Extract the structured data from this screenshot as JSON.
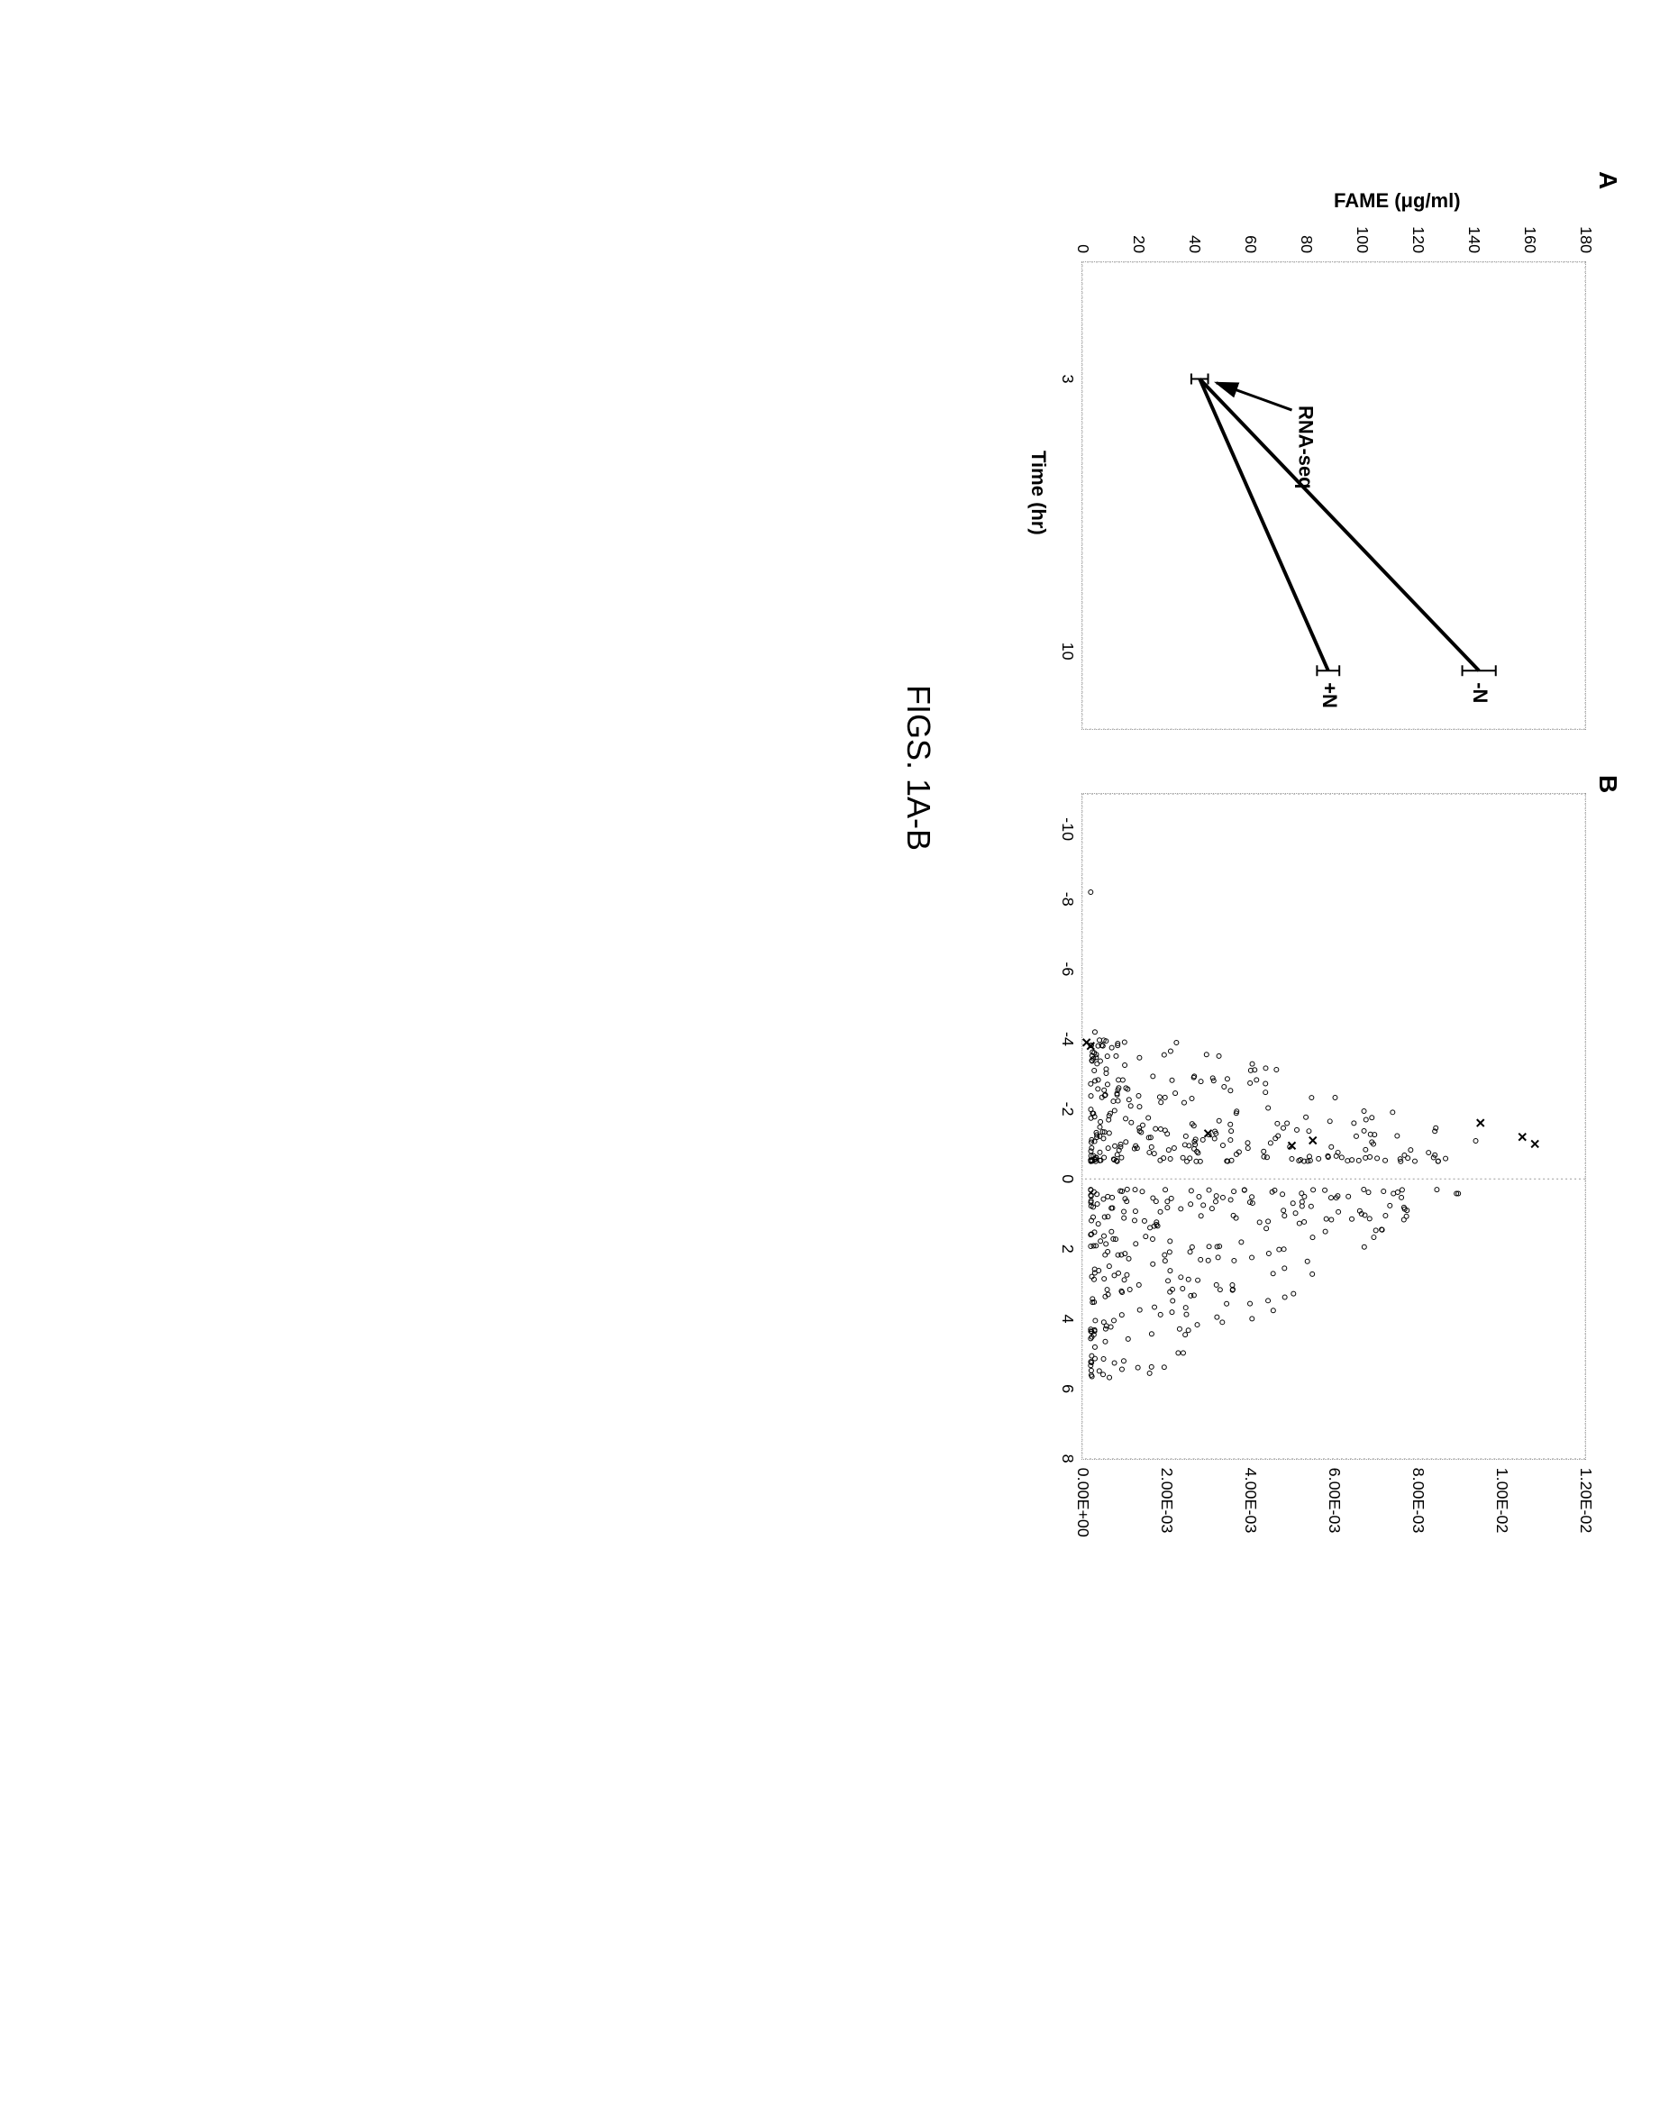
{
  "figure_caption": "FIGS. 1A-B",
  "panel_a": {
    "label": "A",
    "type": "line",
    "x_axis_label": "Time (hr)",
    "y_axis_label": "FAME (μg/ml)",
    "x_ticks": [
      3,
      10
    ],
    "y_ticks": [
      0,
      20,
      40,
      60,
      80,
      100,
      120,
      140,
      160,
      180
    ],
    "xlim": [
      0,
      12
    ],
    "ylim": [
      0,
      180
    ],
    "series": [
      {
        "name": "-N",
        "x": [
          3,
          10.5
        ],
        "y": [
          42,
          142
        ],
        "label": "-N",
        "label_x": 10.8,
        "label_y": 142,
        "error_bars": [
          {
            "x": 3,
            "y": 42,
            "err": 3
          },
          {
            "x": 10.5,
            "y": 142,
            "err": 6
          }
        ]
      },
      {
        "name": "+N",
        "x": [
          3,
          10.5
        ],
        "y": [
          42,
          88
        ],
        "label": "+N",
        "label_x": 10.8,
        "label_y": 88,
        "error_bars": [
          {
            "x": 3,
            "y": 42,
            "err": 3
          },
          {
            "x": 10.5,
            "y": 88,
            "err": 4
          }
        ]
      }
    ],
    "annotation": {
      "text": "RNA-seq",
      "arrow_from": [
        3.8,
        75
      ],
      "arrow_to": [
        3.1,
        48
      ]
    },
    "line_color": "#000000",
    "line_width": 4,
    "marker_size": 6,
    "grid_color": "#cccccc",
    "background_color": "#ffffff",
    "font_size_axis": 22,
    "font_size_tick": 18
  },
  "panel_b": {
    "label": "B",
    "type": "scatter",
    "x_ticks": [
      -10,
      -8,
      -6,
      -4,
      -2,
      0,
      2,
      4,
      6,
      8
    ],
    "y_ticks": [
      "0.00E+00",
      "2.00E-03",
      "4.00E-03",
      "6.00E-03",
      "8.00E-03",
      "1.00E-02",
      "1.20E-02"
    ],
    "y_tick_values": [
      0,
      0.002,
      0.004,
      0.006,
      0.008,
      0.01,
      0.012
    ],
    "xlim": [
      -11,
      8
    ],
    "ylim": [
      0,
      0.012
    ],
    "vertical_line_x": 0,
    "circle_marker": {
      "shape": "circle",
      "size": 5,
      "fill": "none",
      "stroke": "#000000"
    },
    "x_marker": {
      "shape": "x",
      "size": 8,
      "stroke": "#000000"
    },
    "x_points": [
      {
        "x": -3.9,
        "y": 0.0001
      },
      {
        "x": -3.8,
        "y": 0.0002
      },
      {
        "x": -1.2,
        "y": 0.0105
      },
      {
        "x": -1.0,
        "y": 0.0108
      },
      {
        "x": -1.6,
        "y": 0.0095
      },
      {
        "x": -1.1,
        "y": 0.0055
      },
      {
        "x": -0.95,
        "y": 0.005
      },
      {
        "x": -1.3,
        "y": 0.003
      }
    ],
    "grid_color": "#cccccc",
    "background_color": "#ffffff",
    "font_size_tick": 18
  }
}
